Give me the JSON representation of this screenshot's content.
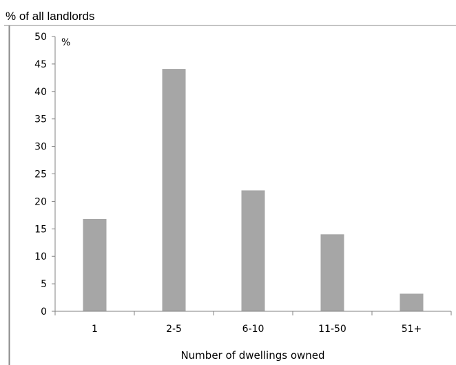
{
  "chart_data": {
    "type": "bar",
    "title": "% of all landlords",
    "unit_label": "%",
    "xlabel": "Number of dwellings owned",
    "ylabel": "",
    "categories": [
      "1",
      "2-5",
      "6-10",
      "11-50",
      "51+"
    ],
    "values": [
      16.8,
      44.1,
      22.0,
      14.0,
      3.2
    ],
    "ylim": [
      0,
      50
    ],
    "yticks": [
      0,
      5,
      10,
      15,
      20,
      25,
      30,
      35,
      40,
      45,
      50
    ],
    "grid": false,
    "legend": "none",
    "colors": {
      "bar": "#a6a6a6",
      "axis": "#808080",
      "frame": "#888888"
    }
  }
}
